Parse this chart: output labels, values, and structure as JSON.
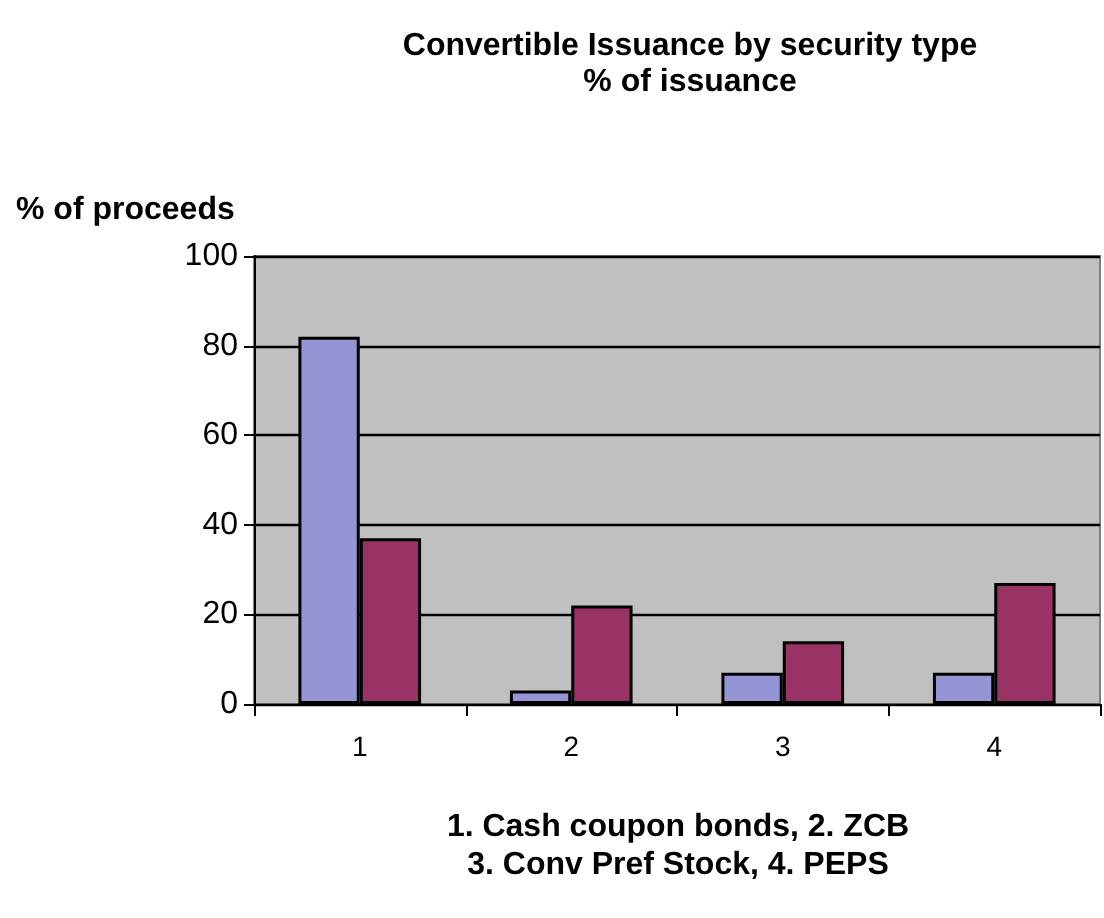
{
  "chart_data": {
    "type": "bar",
    "title": "Convertible Issuance by security type",
    "subtitle": "% of issuance",
    "ylabel": "% of proceeds",
    "xlabel": "1. Cash coupon bonds, 2. ZCB\n3. Conv Pref Stock, 4. PEPS",
    "categories": [
      "1",
      "2",
      "3",
      "4"
    ],
    "series": [
      {
        "color": "#9594d4",
        "values": [
          82,
          3,
          7,
          7
        ]
      },
      {
        "color": "#993366",
        "values": [
          37,
          22,
          14,
          27
        ]
      }
    ],
    "ylim": [
      0,
      100
    ],
    "yticks": [
      0,
      20,
      40,
      60,
      80,
      100
    ],
    "grid": "y"
  }
}
